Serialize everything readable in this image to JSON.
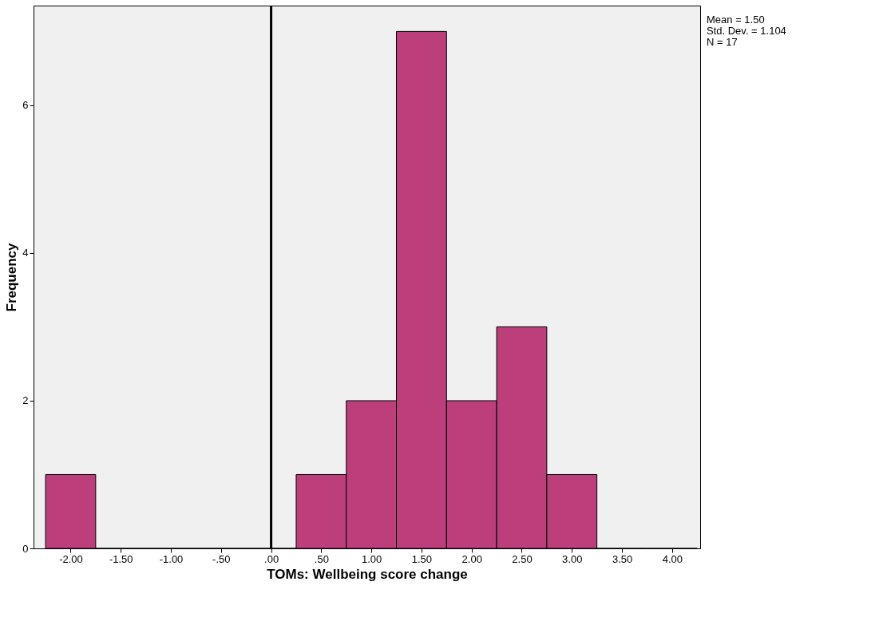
{
  "chart_data": {
    "type": "histogram",
    "xlabel": "TOMs: Wellbeing score change",
    "ylabel": "Frequency",
    "bins": [
      -2.25,
      -1.75,
      -1.25,
      -0.75,
      -0.25,
      0.25,
      0.75,
      1.25,
      1.75,
      2.25,
      2.75,
      3.25,
      3.75,
      4.25
    ],
    "values": [
      1,
      0,
      0,
      0,
      0,
      1,
      2,
      7,
      2,
      3,
      1,
      0,
      0
    ],
    "color": "#bc3f7c",
    "xlim": [
      -2.37,
      4.28
    ],
    "ylim": [
      0,
      7.35
    ],
    "xticks": [
      {
        "value": -2,
        "label": "-2.00"
      },
      {
        "value": -1.5,
        "label": "-1.50"
      },
      {
        "value": -1,
        "label": "-1.00"
      },
      {
        "value": -0.5,
        "label": "-.50"
      },
      {
        "value": 0,
        "label": ".00"
      },
      {
        "value": 0.5,
        "label": ".50"
      },
      {
        "value": 1,
        "label": "1.00"
      },
      {
        "value": 1.5,
        "label": "1.50"
      },
      {
        "value": 2,
        "label": "2.00"
      },
      {
        "value": 2.5,
        "label": "2.50"
      },
      {
        "value": 3,
        "label": "3.00"
      },
      {
        "value": 3.5,
        "label": "3.50"
      },
      {
        "value": 4,
        "label": "4.00"
      }
    ],
    "yticks": [
      0,
      2,
      4,
      6
    ],
    "ref_lines": [
      {
        "axis": "x",
        "value": 0,
        "color": "#000000"
      }
    ],
    "annotations": [
      "Mean = 1.50",
      "Std. Dev. = 1.104",
      "N = 17"
    ],
    "grid": false
  }
}
